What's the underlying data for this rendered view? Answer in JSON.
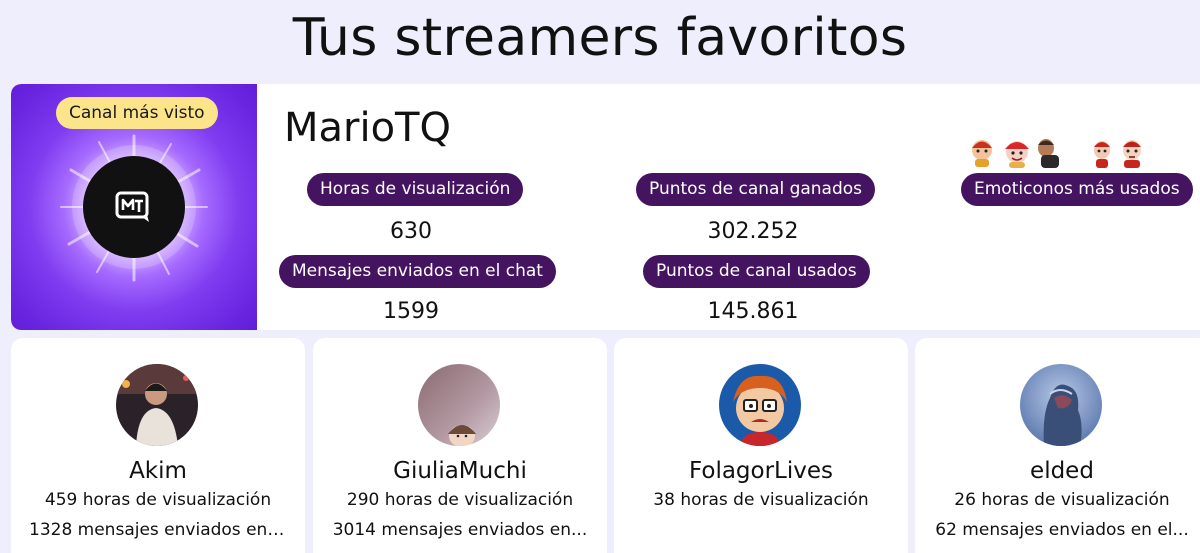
{
  "page": {
    "title": "Tus streamers favoritos"
  },
  "top_channel": {
    "badge": "Canal más visto",
    "name": "MarioTQ",
    "avatar_icon": "mt-logo-icon",
    "stats": {
      "watch_hours": {
        "label": "Horas de visualización",
        "value": "630"
      },
      "points_earned": {
        "label": "Puntos de canal ganados",
        "value": "302.252"
      },
      "messages": {
        "label": "Mensajes enviados en el chat",
        "value": "1599"
      },
      "points_used": {
        "label": "Puntos de canal usados",
        "value": "145.861"
      },
      "emotes": {
        "label": "Emoticonos más usados",
        "icons": [
          "emote-1",
          "emote-2",
          "emote-3",
          "emote-4",
          "emote-5"
        ]
      }
    },
    "colors": {
      "pill_bg": "#451461",
      "badge_bg": "#fbe48a",
      "hero_purple": "#6a25e0"
    }
  },
  "streamers": [
    {
      "name": "Akim",
      "hours": "459 horas de visualización",
      "messages": "1328 mensajes enviados en ..."
    },
    {
      "name": "GiuliaMuchi",
      "hours": "290 horas de visualización",
      "messages": "3014 mensajes enviados en..."
    },
    {
      "name": "FolagorLives",
      "hours": "38 horas de visualización",
      "messages": ""
    },
    {
      "name": "elded",
      "hours": "26 horas de visualización",
      "messages": "62 mensajes enviados en el..."
    }
  ]
}
